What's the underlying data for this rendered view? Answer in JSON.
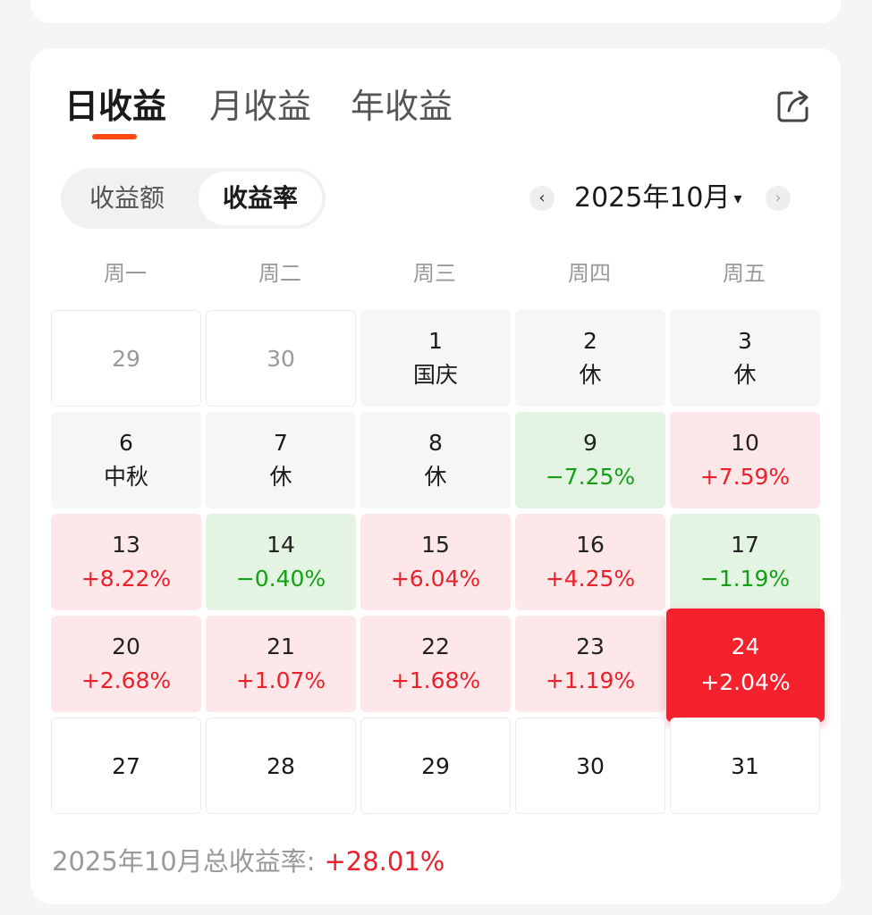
{
  "tabs": [
    {
      "label": "日收益",
      "active": true
    },
    {
      "label": "月收益",
      "active": false
    },
    {
      "label": "年收益",
      "active": false
    }
  ],
  "toggle": {
    "options": [
      "收益额",
      "收益率"
    ],
    "selected": "收益率"
  },
  "month_nav": {
    "prev": "‹",
    "label": "2025年10月",
    "caret": "▾",
    "next": "›"
  },
  "weekdays": [
    "周一",
    "周二",
    "周三",
    "周四",
    "周五"
  ],
  "weeks": [
    [
      {
        "day": "29",
        "value": "",
        "type": "outside"
      },
      {
        "day": "30",
        "value": "",
        "type": "outside"
      },
      {
        "day": "1",
        "value": "国庆",
        "type": "holiday"
      },
      {
        "day": "2",
        "value": "休",
        "type": "holiday"
      },
      {
        "day": "3",
        "value": "休",
        "type": "holiday"
      }
    ],
    [
      {
        "day": "6",
        "value": "中秋",
        "type": "holiday"
      },
      {
        "day": "7",
        "value": "休",
        "type": "holiday"
      },
      {
        "day": "8",
        "value": "休",
        "type": "holiday"
      },
      {
        "day": "9",
        "value": "−7.25%",
        "type": "down"
      },
      {
        "day": "10",
        "value": "+7.59%",
        "type": "up"
      }
    ],
    [
      {
        "day": "13",
        "value": "+8.22%",
        "type": "up"
      },
      {
        "day": "14",
        "value": "−0.40%",
        "type": "down"
      },
      {
        "day": "15",
        "value": "+6.04%",
        "type": "up"
      },
      {
        "day": "16",
        "value": "+4.25%",
        "type": "up"
      },
      {
        "day": "17",
        "value": "−1.19%",
        "type": "down"
      }
    ],
    [
      {
        "day": "20",
        "value": "+2.68%",
        "type": "up"
      },
      {
        "day": "21",
        "value": "+1.07%",
        "type": "up"
      },
      {
        "day": "22",
        "value": "+1.68%",
        "type": "up"
      },
      {
        "day": "23",
        "value": "+1.19%",
        "type": "up"
      },
      {
        "day": "24",
        "value": "+2.04%",
        "type": "selected"
      }
    ],
    [
      {
        "day": "27",
        "value": "",
        "type": "future"
      },
      {
        "day": "28",
        "value": "",
        "type": "future"
      },
      {
        "day": "29",
        "value": "",
        "type": "future"
      },
      {
        "day": "30",
        "value": "",
        "type": "future"
      },
      {
        "day": "31",
        "value": "",
        "type": "future"
      }
    ]
  ],
  "summary": {
    "label": "2025年10月总收益率:",
    "value": "+28.01%"
  },
  "colors": {
    "accent": "#ff4a14",
    "up": "#e8212b",
    "down": "#14a014",
    "selected_bg": "#f5222d"
  },
  "icons": {
    "share": "share-icon"
  }
}
